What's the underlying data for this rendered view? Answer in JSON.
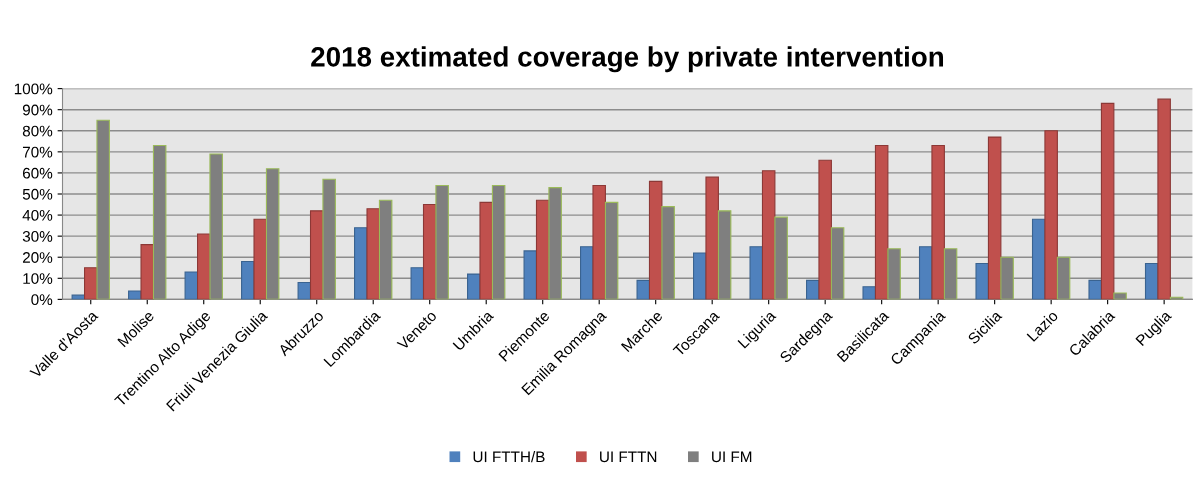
{
  "chart_data": {
    "type": "bar",
    "title": "2018 extimated coverage by private intervention",
    "categories": [
      "Valle d'Aosta",
      "Molise",
      "Trentino Alto Adige",
      "Friuli Venezia Giulia",
      "Abruzzo",
      "Lombardia",
      "Veneto",
      "Umbria",
      "Piemonte",
      "Emilia Romagna",
      "Marche",
      "Toscana",
      "Liguria",
      "Sardegna",
      "Basilicata",
      "Campania",
      "Sicilia",
      "Lazio",
      "Calabria",
      "Puglia"
    ],
    "series": [
      {
        "name": "UI FTTH/B",
        "color": "#4f81bd",
        "values": [
          2,
          4,
          13,
          18,
          8,
          34,
          15,
          12,
          23,
          25,
          9,
          22,
          25,
          9,
          6,
          25,
          17,
          38,
          9,
          17
        ]
      },
      {
        "name": "UI FTTN",
        "color": "#c0504d",
        "values": [
          15,
          26,
          31,
          38,
          42,
          43,
          45,
          46,
          47,
          54,
          56,
          58,
          61,
          66,
          73,
          73,
          77,
          80,
          93,
          95
        ]
      },
      {
        "name": "UI FM",
        "color": "#7f7f7f",
        "values": [
          85,
          73,
          69,
          62,
          57,
          47,
          54,
          54,
          53,
          46,
          44,
          42,
          39,
          34,
          24,
          24,
          20,
          20,
          3,
          1
        ]
      }
    ],
    "ylim": [
      0,
      100
    ],
    "yticks": [
      {
        "value": 0,
        "label": "0%"
      },
      {
        "value": 10,
        "label": "10%"
      },
      {
        "value": 20,
        "label": "20%"
      },
      {
        "value": 30,
        "label": "30%"
      },
      {
        "value": 40,
        "label": "40%"
      },
      {
        "value": 50,
        "label": "50%"
      },
      {
        "value": 60,
        "label": "60%"
      },
      {
        "value": 70,
        "label": "70%"
      },
      {
        "value": 80,
        "label": "80%"
      },
      {
        "value": 90,
        "label": "90%"
      },
      {
        "value": 100,
        "label": "100%"
      }
    ],
    "grid": "y",
    "legend": "bottom"
  }
}
